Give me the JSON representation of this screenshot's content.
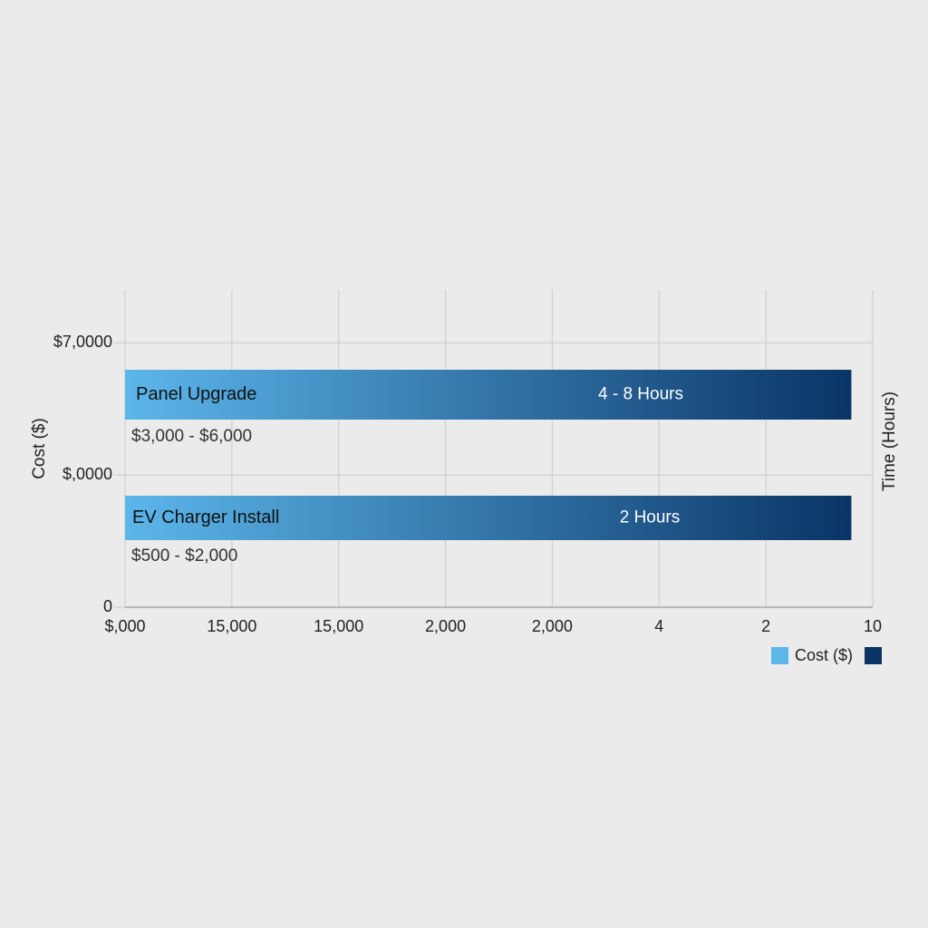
{
  "chart_data": {
    "type": "hbar",
    "y_label": "Cost ($)",
    "y2_label": "Time (Hours)",
    "categories": [
      "Panel Upgrade",
      "EV Charger Install"
    ],
    "series": [
      {
        "name": "Cost ($)",
        "values": [
          6.8,
          6.8
        ],
        "color_start": "#5cb6ea",
        "color_end": "#0a3466"
      }
    ],
    "cost_labels": [
      "$3,000 - $6,000",
      "$500 - $2,000"
    ],
    "time_labels": [
      "4 - 8 Hours",
      "2 Hours"
    ],
    "xlim": [
      0,
      7
    ],
    "xticks": [
      {
        "value": 0,
        "label": "$,000"
      },
      {
        "value": 1,
        "label": "15,000"
      },
      {
        "value": 2,
        "label": "15,000"
      },
      {
        "value": 3,
        "label": "2,000"
      },
      {
        "value": 4,
        "label": "2,000"
      },
      {
        "value": 5,
        "label": "4"
      },
      {
        "value": 6,
        "label": "2"
      },
      {
        "value": 7,
        "label": "10"
      }
    ],
    "ylim": [
      0,
      2.4
    ],
    "yticks": [
      0,
      {
        "value": 1,
        "label": "$,0000"
      },
      {
        "value": 2,
        "label": "$7,0000"
      }
    ],
    "grid": true
  }
}
